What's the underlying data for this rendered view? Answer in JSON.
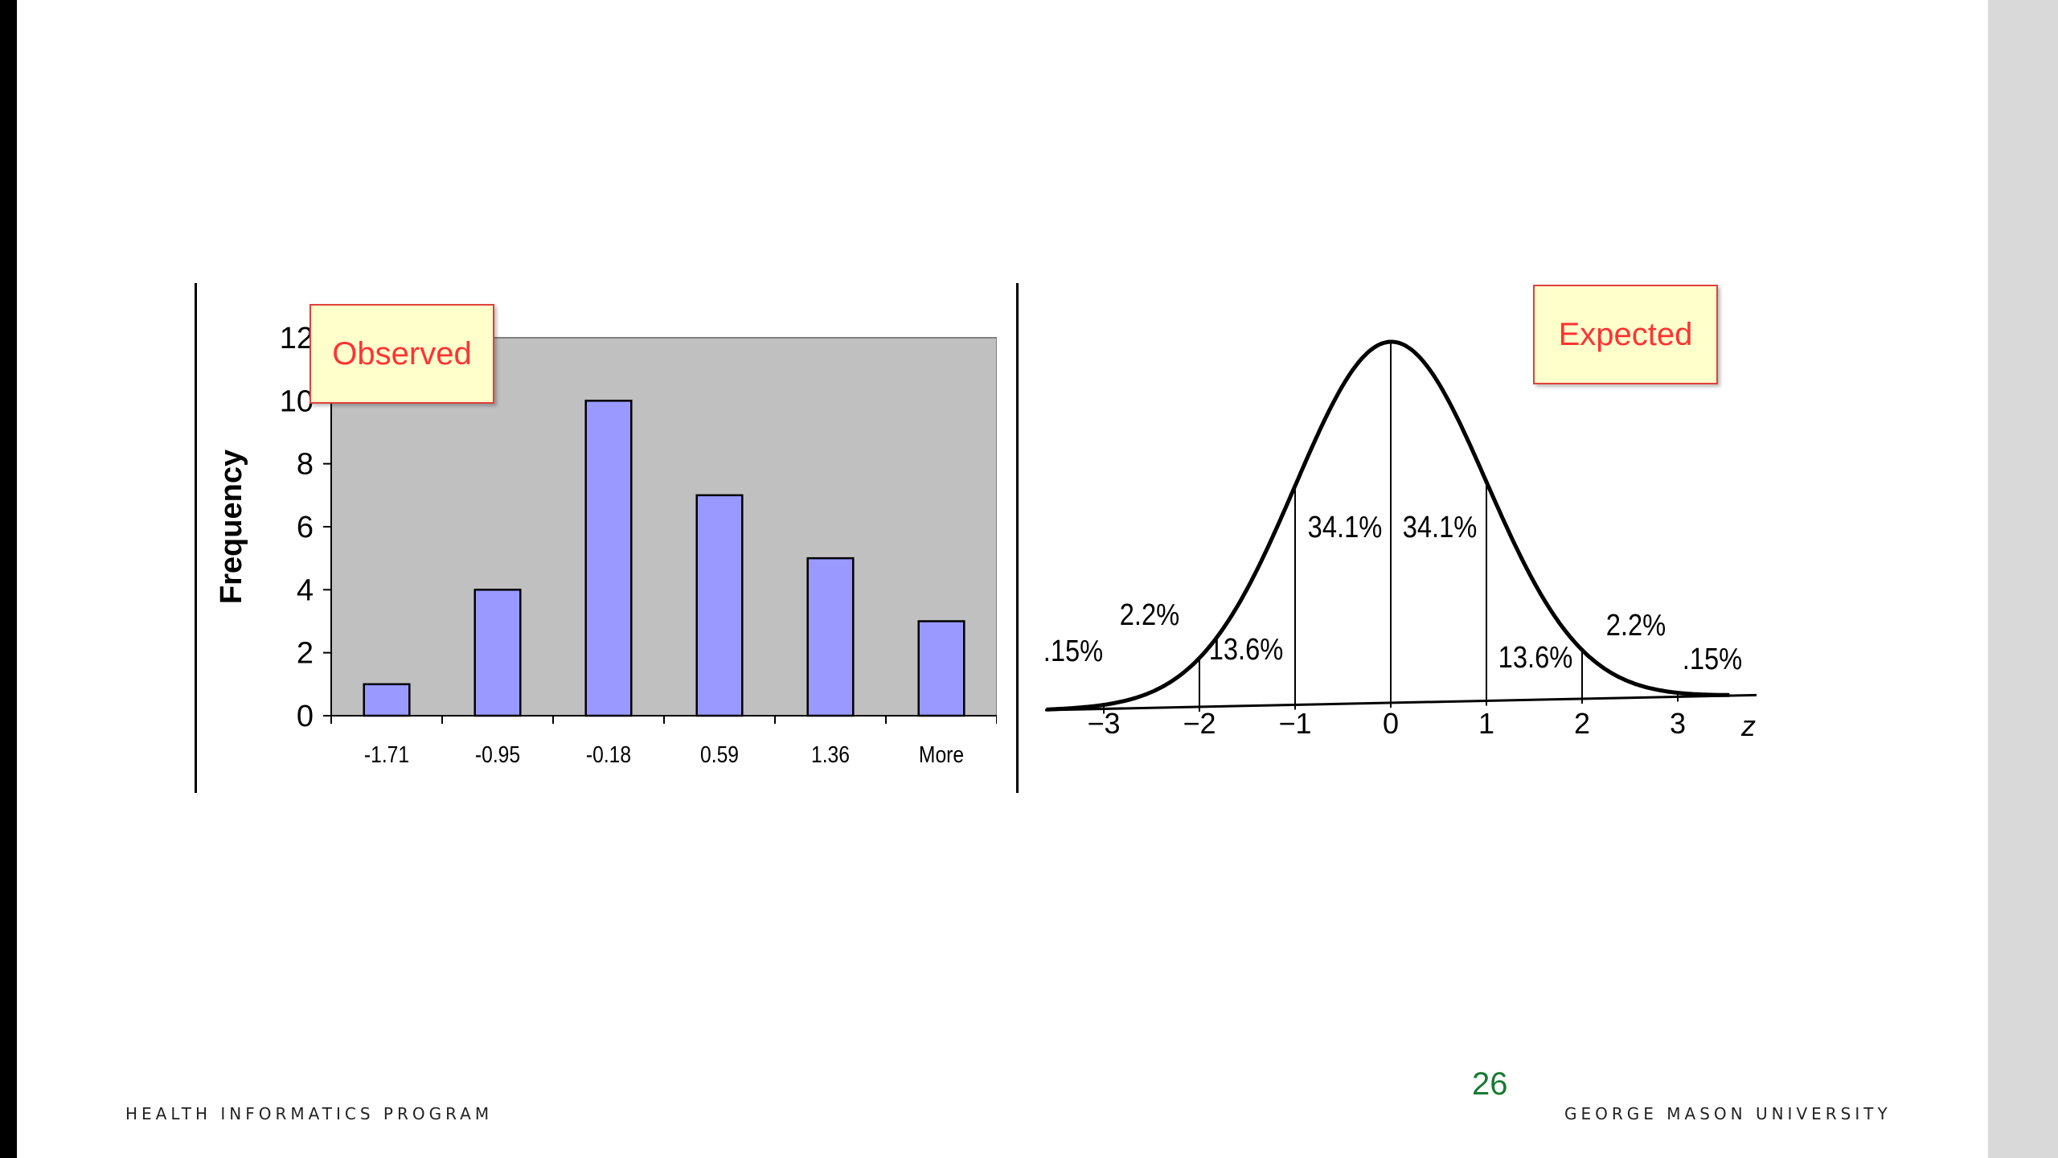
{
  "slide": {
    "footer_left": "HEALTH INFORMATICS PROGRAM",
    "footer_right": "GEORGE MASON UNIVERSITY",
    "page_number": "26",
    "observed_label": "Observed",
    "expected_label": "Expected"
  },
  "chart_data": [
    {
      "type": "bar",
      "ylabel": "Frequency",
      "categories": [
        "-1.71",
        "-0.95",
        "-0.18",
        "0.59",
        "1.36",
        "More"
      ],
      "values": [
        1,
        4,
        10,
        7,
        5,
        3
      ],
      "ylim": [
        0,
        12
      ],
      "yticks": [
        "0",
        "2",
        "4",
        "6",
        "8",
        "10",
        "12"
      ],
      "bar_color": "#9999ff",
      "plot_background": "#c0c0c0",
      "annotation": "Observed"
    },
    {
      "type": "line",
      "xlabel": "z",
      "xticks": [
        "−3",
        "−2",
        "−1",
        "0",
        "1",
        "2",
        "3"
      ],
      "percent_labels": [
        ".15%",
        "2.2%",
        "13.6%",
        "34.1%",
        "34.1%",
        "13.6%",
        "2.2%",
        ".15%"
      ],
      "annotation": "Expected"
    }
  ]
}
